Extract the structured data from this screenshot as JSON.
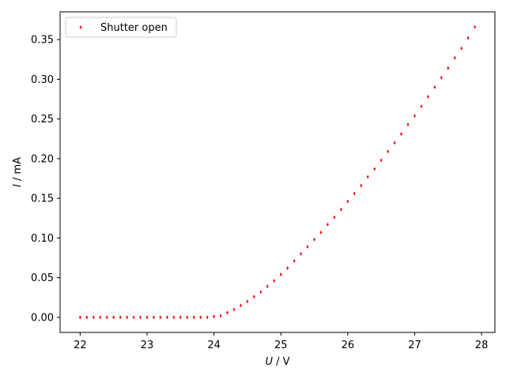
{
  "chart_data": {
    "type": "scatter",
    "xlabel": {
      "var": "U",
      "unit": " / V"
    },
    "ylabel": {
      "var": "I",
      "unit": " / mA"
    },
    "xlim": [
      21.7,
      28.2
    ],
    "ylim": [
      -0.019,
      0.385
    ],
    "xticks": [
      22,
      23,
      24,
      25,
      26,
      27,
      28
    ],
    "yticks": [
      0.0,
      0.05,
      0.1,
      0.15,
      0.2,
      0.25,
      0.3,
      0.35
    ],
    "xtick_labels": [
      "22",
      "23",
      "24",
      "25",
      "26",
      "27",
      "28"
    ],
    "ytick_labels": [
      "0.00",
      "0.05",
      "0.10",
      "0.15",
      "0.20",
      "0.25",
      "0.30",
      "0.35"
    ],
    "grid": false,
    "legend_position": "upper-left",
    "series": [
      {
        "name": "Shutter open",
        "color": "#ff0000",
        "marker": "diamond",
        "x": [
          22.0,
          22.1,
          22.2,
          22.3,
          22.4,
          22.5,
          22.6,
          22.7,
          22.8,
          22.9,
          23.0,
          23.1,
          23.2,
          23.3,
          23.4,
          23.5,
          23.6,
          23.7,
          23.8,
          23.9,
          24.0,
          24.1,
          24.2,
          24.3,
          24.4,
          24.5,
          24.6,
          24.7,
          24.8,
          24.9,
          25.0,
          25.1,
          25.2,
          25.3,
          25.4,
          25.5,
          25.6,
          25.7,
          25.8,
          25.9,
          26.0,
          26.1,
          26.2,
          26.3,
          26.4,
          26.5,
          26.6,
          26.7,
          26.8,
          26.9,
          27.0,
          27.1,
          27.2,
          27.3,
          27.4,
          27.5,
          27.6,
          27.7,
          27.8,
          27.9
        ],
        "y": [
          0.0,
          0.0,
          0.0,
          0.0,
          0.0,
          0.0,
          0.0,
          0.0,
          0.0,
          0.0,
          0.0,
          0.0,
          0.0,
          0.0,
          0.0,
          0.0,
          0.0,
          0.0,
          0.0,
          0.0,
          0.001,
          0.002,
          0.006,
          0.01,
          0.015,
          0.02,
          0.026,
          0.032,
          0.039,
          0.046,
          0.054,
          0.062,
          0.071,
          0.08,
          0.089,
          0.098,
          0.107,
          0.117,
          0.126,
          0.136,
          0.146,
          0.156,
          0.166,
          0.177,
          0.187,
          0.198,
          0.209,
          0.22,
          0.231,
          0.243,
          0.254,
          0.266,
          0.278,
          0.29,
          0.302,
          0.314,
          0.327,
          0.339,
          0.352,
          0.366
        ]
      }
    ]
  }
}
